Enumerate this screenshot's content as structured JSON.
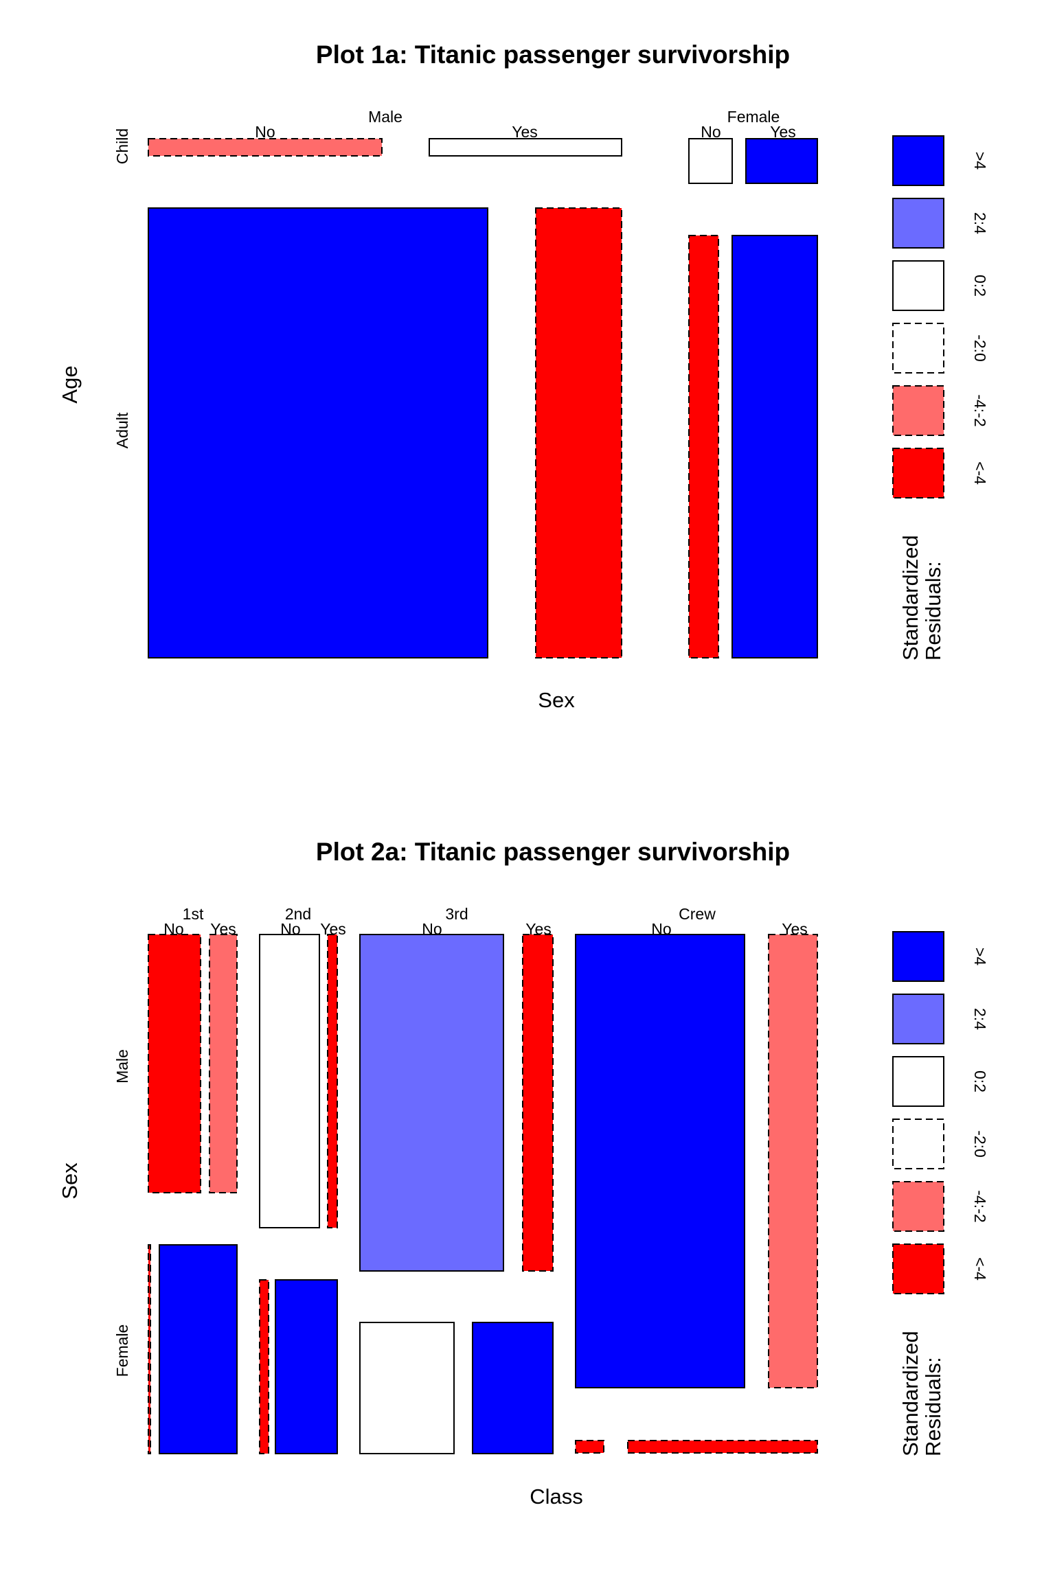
{
  "colors": {
    "strong_pos": "#0000ff",
    "mid_pos": "#6b6bff",
    "neutral": "#ffffff",
    "mid_neg": "#ff6b6b",
    "strong_neg": "#ff0000",
    "stroke": "#000000"
  },
  "legend": {
    "title_lines": [
      "Standardized",
      "Residuals:"
    ],
    "entries": [
      {
        "label": ">4",
        "color": "#0000ff",
        "dashed": false
      },
      {
        "label": "2:4",
        "color": "#6b6bff",
        "dashed": false
      },
      {
        "label": "0:2",
        "color": "#ffffff",
        "dashed": false
      },
      {
        "label": "-2:0",
        "color": "#ffffff",
        "dashed": true
      },
      {
        "label": "-4:-2",
        "color": "#ff6b6b",
        "dashed": true
      },
      {
        "label": "<-4",
        "color": "#ff0000",
        "dashed": true
      }
    ]
  },
  "chart_data": [
    {
      "type": "mosaic",
      "title": "Plot 1a: Titanic passenger survivorship",
      "xlabel": "Sex",
      "ylabel": "Age",
      "x_categories": [
        "Male",
        "Female"
      ],
      "x_shares": [
        0.786,
        0.214
      ],
      "y_categories": [
        "Child",
        "Adult"
      ],
      "split_labels": [
        "No",
        "Yes"
      ],
      "cells": [
        {
          "x": "Male",
          "y": "Child",
          "split": "No",
          "share_x": 0.54,
          "share_y": 0.04,
          "residual": "-4:-2"
        },
        {
          "x": "Male",
          "y": "Child",
          "split": "Yes",
          "share_x": 0.46,
          "share_y": 0.04,
          "residual": "0:2"
        },
        {
          "x": "Male",
          "y": "Adult",
          "split": "No",
          "share_x": 0.8,
          "share_y": 0.96,
          "residual": ">4"
        },
        {
          "x": "Male",
          "y": "Adult",
          "split": "Yes",
          "share_x": 0.2,
          "share_y": 0.96,
          "residual": "<-4"
        },
        {
          "x": "Female",
          "y": "Child",
          "split": "No",
          "share_x": 0.37,
          "share_y": 0.1,
          "residual": "0:2"
        },
        {
          "x": "Female",
          "y": "Child",
          "split": "Yes",
          "share_x": 0.63,
          "share_y": 0.1,
          "residual": ">4"
        },
        {
          "x": "Female",
          "y": "Adult",
          "split": "No",
          "share_x": 0.26,
          "share_y": 0.9,
          "residual": "<-4"
        },
        {
          "x": "Female",
          "y": "Adult",
          "split": "Yes",
          "share_x": 0.74,
          "share_y": 0.9,
          "residual": ">4"
        }
      ]
    },
    {
      "type": "mosaic",
      "title": "Plot 2a: Titanic passenger survivorship",
      "xlabel": "Class",
      "ylabel": "Sex",
      "x_categories": [
        "1st",
        "2nd",
        "3rd",
        "Crew"
      ],
      "x_shares": [
        0.148,
        0.129,
        0.321,
        0.402
      ],
      "y_categories": [
        "Male",
        "Female"
      ],
      "split_labels": [
        "No",
        "Yes"
      ],
      "cells": [
        {
          "x": "1st",
          "y": "Male",
          "split": "No",
          "share_x": 0.66,
          "share_y": 0.56,
          "residual": "<-4"
        },
        {
          "x": "1st",
          "y": "Male",
          "split": "Yes",
          "share_x": 0.34,
          "share_y": 0.56,
          "residual": "-4:-2"
        },
        {
          "x": "1st",
          "y": "Female",
          "split": "No",
          "share_x": 0.03,
          "share_y": 0.44,
          "residual": "<-4"
        },
        {
          "x": "1st",
          "y": "Female",
          "split": "Yes",
          "share_x": 0.97,
          "share_y": 0.44,
          "residual": ">4"
        },
        {
          "x": "2nd",
          "y": "Male",
          "split": "No",
          "share_x": 0.85,
          "share_y": 0.63,
          "residual": "0:2"
        },
        {
          "x": "2nd",
          "y": "Male",
          "split": "Yes",
          "share_x": 0.15,
          "share_y": 0.63,
          "residual": "<-4"
        },
        {
          "x": "2nd",
          "y": "Female",
          "split": "No",
          "share_x": 0.15,
          "share_y": 0.37,
          "residual": "<-4"
        },
        {
          "x": "2nd",
          "y": "Female",
          "split": "Yes",
          "share_x": 0.85,
          "share_y": 0.37,
          "residual": ">4"
        },
        {
          "x": "3rd",
          "y": "Male",
          "split": "No",
          "share_x": 0.84,
          "share_y": 0.72,
          "residual": "2:4"
        },
        {
          "x": "3rd",
          "y": "Male",
          "split": "Yes",
          "share_x": 0.16,
          "share_y": 0.72,
          "residual": "<-4"
        },
        {
          "x": "3rd",
          "y": "Female",
          "split": "No",
          "share_x": 0.54,
          "share_y": 0.28,
          "residual": "0:2"
        },
        {
          "x": "3rd",
          "y": "Female",
          "split": "Yes",
          "share_x": 0.46,
          "share_y": 0.28,
          "residual": ">4"
        },
        {
          "x": "Crew",
          "y": "Male",
          "split": "No",
          "share_x": 0.78,
          "share_y": 0.97,
          "residual": ">4"
        },
        {
          "x": "Crew",
          "y": "Male",
          "split": "Yes",
          "share_x": 0.22,
          "share_y": 0.97,
          "residual": "-4:-2"
        },
        {
          "x": "Crew",
          "y": "Female",
          "split": "No",
          "share_x": 0.13,
          "share_y": 0.03,
          "residual": "<-4"
        },
        {
          "x": "Crew",
          "y": "Female",
          "split": "Yes",
          "share_x": 0.87,
          "share_y": 0.03,
          "residual": "<-4"
        }
      ]
    }
  ]
}
